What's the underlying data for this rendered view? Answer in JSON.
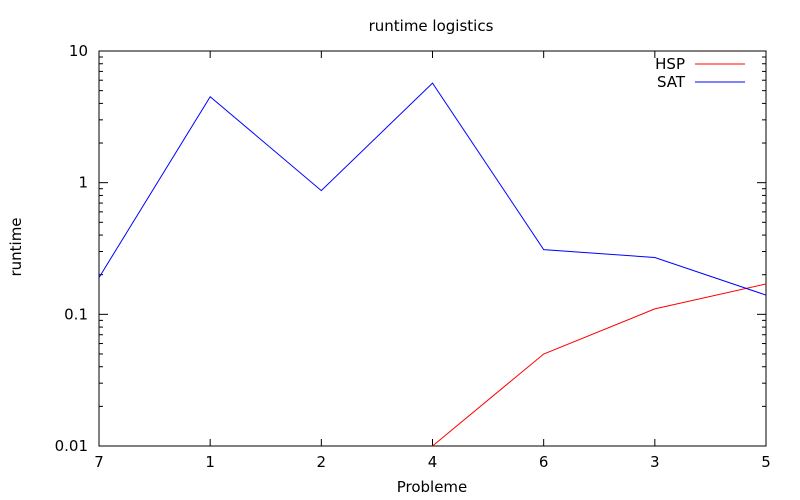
{
  "chart_data": {
    "type": "line",
    "title": "runtime logistics",
    "xlabel": "Probleme",
    "ylabel": "runtime",
    "categories": [
      "7",
      "1",
      "2",
      "4",
      "6",
      "3",
      "5"
    ],
    "y_scale": "log",
    "ylim": [
      0.01,
      10
    ],
    "y_ticks": [
      0.01,
      0.1,
      1,
      10
    ],
    "y_tick_labels": [
      "0.01",
      "0.1",
      "1",
      "10"
    ],
    "legend_position": "top-right",
    "series": [
      {
        "name": "HSP",
        "color": "#ff0000",
        "values": [
          null,
          null,
          null,
          0.01,
          0.05,
          0.11,
          0.17
        ]
      },
      {
        "name": "SAT",
        "color": "#0000ff",
        "values": [
          0.19,
          4.5,
          0.87,
          5.7,
          0.31,
          0.27,
          0.14
        ]
      }
    ]
  }
}
